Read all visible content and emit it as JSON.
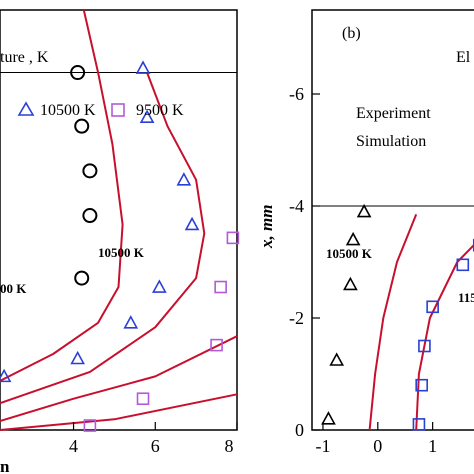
{
  "chart_data": [
    {
      "type": "scatter",
      "panel": "a",
      "legend_title": "ture , K",
      "legend": [
        {
          "label": "10500 K",
          "marker": "triangle",
          "color": "#2a3fd6"
        },
        {
          "label": "9500 K",
          "marker": "square",
          "color": "#b15bd6"
        }
      ],
      "x_ticks": [
        "4",
        "6",
        "8"
      ],
      "xlabel": "n",
      "xlim": [
        2.2,
        8
      ],
      "ylim": [
        0,
        4.7
      ],
      "contour_labels": [
        "10500 K",
        "00 K"
      ],
      "series": [
        {
          "marker": "circle",
          "color": "#000000",
          "points": [
            [
              4.1,
              4.0
            ],
            [
              4.2,
              3.4
            ],
            [
              4.4,
              2.9
            ],
            [
              4.4,
              2.4
            ],
            [
              4.2,
              1.7
            ]
          ]
        },
        {
          "marker": "triangle",
          "color": "#2a3fd6",
          "points": [
            [
              5.7,
              4.05
            ],
            [
              5.8,
              3.5
            ],
            [
              6.7,
              2.8
            ],
            [
              6.9,
              2.3
            ],
            [
              6.1,
              1.6
            ],
            [
              5.4,
              1.2
            ],
            [
              4.1,
              0.8
            ],
            [
              2.3,
              0.6
            ]
          ]
        },
        {
          "marker": "square",
          "color": "#b15bd6",
          "points": [
            [
              7.9,
              2.15
            ],
            [
              7.6,
              1.6
            ],
            [
              7.5,
              0.95
            ],
            [
              5.7,
              0.35
            ],
            [
              4.4,
              0.05
            ]
          ]
        }
      ],
      "curves": [
        {
          "color": "#c8102e",
          "points": [
            [
              4.25,
              4.7
            ],
            [
              4.6,
              4.0
            ],
            [
              4.95,
              3.2
            ],
            [
              5.2,
              2.3
            ],
            [
              5.1,
              1.6
            ],
            [
              4.6,
              1.2
            ],
            [
              3.5,
              0.85
            ],
            [
              2.2,
              0.55
            ]
          ]
        },
        {
          "color": "#c8102e",
          "points": [
            [
              5.8,
              4.0
            ],
            [
              6.3,
              3.4
            ],
            [
              7.0,
              2.8
            ],
            [
              7.2,
              2.2
            ],
            [
              7.0,
              1.7
            ],
            [
              6.0,
              1.15
            ],
            [
              4.4,
              0.65
            ],
            [
              2.2,
              0.3
            ]
          ]
        },
        {
          "color": "#c8102e",
          "points": [
            [
              2.2,
              0.1
            ],
            [
              4.0,
              0.35
            ],
            [
              6.0,
              0.6
            ],
            [
              8.0,
              1.05
            ]
          ]
        },
        {
          "color": "#c8102e",
          "points": [
            [
              2.2,
              0.0
            ],
            [
              5.0,
              0.12
            ],
            [
              8.0,
              0.4
            ]
          ]
        }
      ],
      "hline": 4.0
    },
    {
      "type": "scatter",
      "panel": "b",
      "panel_label": "(b)",
      "top_text": "El",
      "legend": [
        {
          "label": "Experiment"
        },
        {
          "label": "Simulation"
        }
      ],
      "ylabel": "x, mm",
      "y_ticks": [
        "-6",
        "-4",
        "-2",
        "0"
      ],
      "x_ticks": [
        "-1",
        "0",
        "1"
      ],
      "xlim": [
        -1.2,
        1.9
      ],
      "ylim": [
        0,
        -7.5
      ],
      "contour_labels": [
        "10500 K",
        "115"
      ],
      "series": [
        {
          "marker": "triangle",
          "color": "#000000",
          "points": [
            [
              -0.25,
              -3.9
            ],
            [
              -0.45,
              -3.4
            ],
            [
              -0.5,
              -2.6
            ],
            [
              -0.75,
              -1.25
            ],
            [
              -0.9,
              -0.2
            ]
          ]
        },
        {
          "marker": "square",
          "color": "#2a3fd6",
          "points": [
            [
              1.85,
              -3.3
            ],
            [
              1.55,
              -2.95
            ],
            [
              1.0,
              -2.2
            ],
            [
              0.85,
              -1.5
            ],
            [
              0.8,
              -0.8
            ],
            [
              0.75,
              -0.1
            ]
          ]
        }
      ],
      "curves": [
        {
          "color": "#c8102e",
          "points": [
            [
              -0.15,
              0.0
            ],
            [
              -0.05,
              -1.0
            ],
            [
              0.1,
              -2.0
            ],
            [
              0.35,
              -3.0
            ],
            [
              0.7,
              -3.85
            ]
          ]
        },
        {
          "color": "#c8102e",
          "points": [
            [
              0.7,
              0.0
            ],
            [
              0.75,
              -1.0
            ],
            [
              0.95,
              -2.0
            ],
            [
              1.45,
              -3.0
            ],
            [
              1.9,
              -3.45
            ]
          ]
        }
      ],
      "hline": -4.0
    }
  ]
}
